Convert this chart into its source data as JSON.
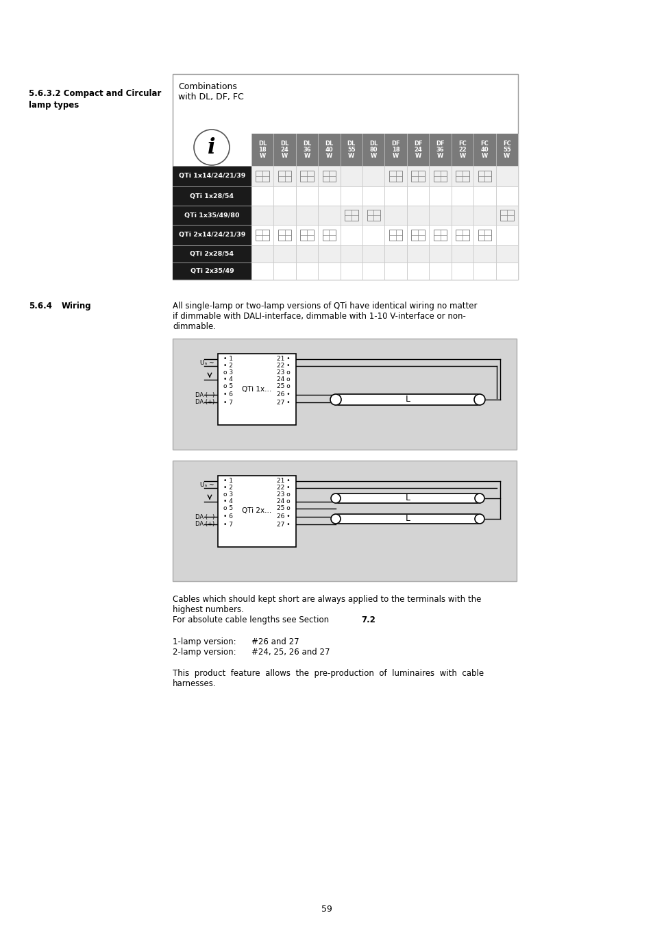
{
  "page_bg": "#ffffff",
  "section_heading1": "5.6.3.2 Compact and Circular",
  "section_heading1b": "lamp types",
  "section_heading2": "5.6.4",
  "section_heading2b": "Wiring",
  "table_title_line1": "Combinations",
  "table_title_line2": "with DL, DF, FC",
  "col_headers": [
    [
      "DL",
      "18",
      "W"
    ],
    [
      "DL",
      "24",
      "W"
    ],
    [
      "DL",
      "36",
      "W"
    ],
    [
      "DL",
      "40",
      "W"
    ],
    [
      "DL",
      "55",
      "W"
    ],
    [
      "DL",
      "80",
      "W"
    ],
    [
      "DF",
      "18",
      "W"
    ],
    [
      "DF",
      "24",
      "W"
    ],
    [
      "DF",
      "36",
      "W"
    ],
    [
      "FC",
      "22",
      "W"
    ],
    [
      "FC",
      "40",
      "W"
    ],
    [
      "FC",
      "55",
      "W"
    ]
  ],
  "row_labels": [
    "QTi 1x14/24/21/39",
    "QTi 1x28/54",
    "QTi 1x35/49/80",
    "QTi 2x14/24/21/39",
    "QTi 2x28/54",
    "QTi 2x35/49"
  ],
  "row_marks": [
    [
      1,
      1,
      1,
      1,
      0,
      0,
      1,
      1,
      1,
      1,
      1,
      0
    ],
    [
      0,
      0,
      0,
      0,
      0,
      0,
      0,
      0,
      0,
      0,
      0,
      0
    ],
    [
      0,
      0,
      0,
      0,
      1,
      1,
      0,
      0,
      0,
      0,
      0,
      1
    ],
    [
      1,
      1,
      1,
      1,
      0,
      0,
      1,
      1,
      1,
      1,
      1,
      0
    ],
    [
      0,
      0,
      0,
      0,
      0,
      0,
      0,
      0,
      0,
      0,
      0,
      0
    ],
    [
      0,
      0,
      0,
      0,
      0,
      0,
      0,
      0,
      0,
      0,
      0,
      0
    ]
  ],
  "wiring_para": "All single-lamp or two-lamp versions of QTi have identical wiring no matter if dimmable with DALI-interface, dimmable with 1-10 V-interface or non-dimmable.",
  "cable_line1": "Cables which should kept short are always applied to the terminals with the",
  "cable_line2": "highest numbers.",
  "cable_line3a": "For absolute cable lengths see Section ",
  "cable_line3b": "7.2",
  "cable_line3c": ".",
  "lamp1": "1-lamp version:",
  "lamp1val": "#26 and 27",
  "lamp2": "2-lamp version:",
  "lamp2val": "#24, 25, 26 and 27",
  "feature1": "This  product  feature  allows  the  pre-production  of  luminaires  with  cable",
  "feature2": "harnesses.",
  "page_number": "59",
  "header_bg": "#7a7a7a",
  "row_label_bg": "#1a1a1a",
  "diagram_bg": "#d4d4d4",
  "mark_color": "#999999"
}
